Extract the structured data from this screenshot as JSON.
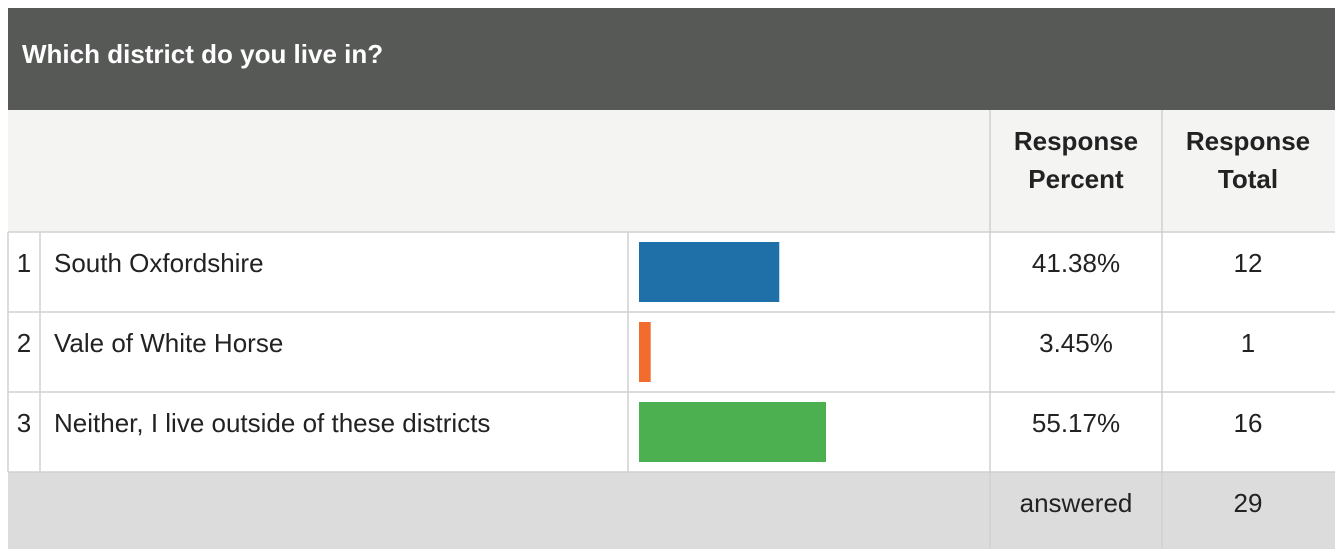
{
  "title": "Which district do you live in?",
  "headers": [
    [
      "Response",
      "Percent"
    ],
    [
      "Response",
      "Total"
    ]
  ],
  "rows": [
    {
      "index": 1,
      "label": "South Oxfordshire",
      "percent": 41.38,
      "percent_label": "41.38%",
      "total": 12,
      "color": "#1f6fa8"
    },
    {
      "index": 2,
      "label": "Vale of White Horse",
      "percent": 3.45,
      "percent_label": "3.45%",
      "total": 1,
      "color": "#f26c2e"
    },
    {
      "index": 3,
      "label": "Neither, I live outside of these districts",
      "percent": 55.17,
      "percent_label": "55.17%",
      "total": 16,
      "color": "#4caf50"
    }
  ],
  "footer": {
    "label": "answered",
    "total": 29
  }
}
